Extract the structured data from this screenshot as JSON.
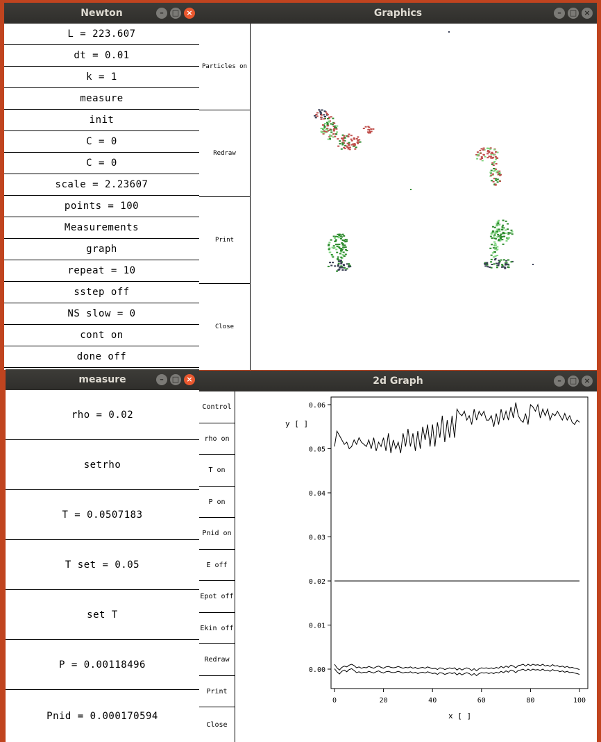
{
  "newton": {
    "title": "Newton",
    "buttons": [
      "L = 223.607",
      "dt = 0.01",
      "k = 1",
      "measure",
      "init",
      "C = 0",
      "C = 0",
      "scale = 2.23607",
      "points = 100",
      "Measurements",
      "graph",
      "repeat = 10",
      "sstep off",
      "NS slow = 0",
      "cont on",
      "done off"
    ]
  },
  "graphics": {
    "title": "Graphics",
    "buttons": [
      "Particles on",
      "Redraw",
      "Print",
      "Close"
    ]
  },
  "measure": {
    "title": "measure",
    "buttons": [
      "rho = 0.02",
      "setrho",
      "T = 0.0507183",
      "T set = 0.05",
      "set T",
      "P = 0.00118496",
      "Pnid = 0.000170594"
    ]
  },
  "graph2d": {
    "title": "2d Graph",
    "buttons": [
      "Control",
      "rho on",
      "T on",
      "P on",
      "Pnid on",
      "E off",
      "Epot off",
      "Ekin off",
      "Redraw",
      "Print",
      "Close"
    ]
  },
  "window_controls": {
    "minimize": "–",
    "maximize": "□",
    "close": "×"
  },
  "colors": {
    "desktop": "#c0441f",
    "titlebar": "#302f2c",
    "close": "#e9582f",
    "plot_line": "#000000",
    "particles": [
      "#2e8b2e",
      "#c0504d",
      "#3a3f55",
      "#7fd67f"
    ]
  },
  "chart_data": {
    "type": "line",
    "xlabel": "x [ ]",
    "ylabel": "y [ ]",
    "xlim": [
      0,
      100
    ],
    "ylim": [
      -0.002,
      0.062
    ],
    "xticks": [
      "0",
      "20",
      "40",
      "60",
      "80",
      "100"
    ],
    "yticks": [
      "0.00",
      "0.01",
      "0.02",
      "0.03",
      "0.04",
      "0.05",
      "0.06"
    ],
    "series": [
      {
        "values": [
          0.0505,
          0.054,
          0.053,
          0.052,
          0.051,
          0.0515,
          0.05,
          0.0505,
          0.052,
          0.051,
          0.0525,
          0.0515,
          0.051,
          0.0505,
          0.052,
          0.05,
          0.0525,
          0.0495,
          0.0515,
          0.0505,
          0.0525,
          0.0495,
          0.0535,
          0.049,
          0.052,
          0.05,
          0.0515,
          0.049,
          0.0535,
          0.0505,
          0.0545,
          0.0505,
          0.0535,
          0.0495,
          0.054,
          0.05,
          0.055,
          0.052,
          0.0555,
          0.0505,
          0.0555,
          0.0505,
          0.056,
          0.0525,
          0.0575,
          0.0515,
          0.0565,
          0.0525,
          0.0575,
          0.0525,
          0.059,
          0.058,
          0.0575,
          0.0585,
          0.0565,
          0.0575,
          0.0555,
          0.059,
          0.0565,
          0.0585,
          0.0575,
          0.0585,
          0.0565,
          0.0565,
          0.0575,
          0.055,
          0.058,
          0.0555,
          0.059,
          0.0565,
          0.0585,
          0.0565,
          0.0595,
          0.057,
          0.0605,
          0.0575,
          0.0565,
          0.056,
          0.058,
          0.0555,
          0.06,
          0.0595,
          0.0585,
          0.06,
          0.057,
          0.059,
          0.0575,
          0.059,
          0.0565,
          0.058,
          0.0575,
          0.0585,
          0.0575,
          0.0565,
          0.058,
          0.0565,
          0.0575,
          0.056,
          0.0555,
          0.0565,
          0.056
        ]
      },
      {
        "values": [
          0.02,
          0.02,
          0.02,
          0.02,
          0.02,
          0.02,
          0.02,
          0.02,
          0.02,
          0.02,
          0.02,
          0.02,
          0.02,
          0.02,
          0.02,
          0.02,
          0.02,
          0.02,
          0.02,
          0.02,
          0.02,
          0.02,
          0.02,
          0.02,
          0.02,
          0.02,
          0.02,
          0.02,
          0.02,
          0.02,
          0.02,
          0.02,
          0.02,
          0.02,
          0.02,
          0.02,
          0.02,
          0.02,
          0.02,
          0.02,
          0.02,
          0.02,
          0.02,
          0.02,
          0.02,
          0.02,
          0.02,
          0.02,
          0.02,
          0.02,
          0.02,
          0.02,
          0.02,
          0.02,
          0.02,
          0.02,
          0.02,
          0.02,
          0.02,
          0.02,
          0.02,
          0.02,
          0.02,
          0.02,
          0.02,
          0.02,
          0.02,
          0.02,
          0.02,
          0.02,
          0.02,
          0.02,
          0.02,
          0.02,
          0.02,
          0.02,
          0.02,
          0.02,
          0.02,
          0.02,
          0.02,
          0.02,
          0.02,
          0.02,
          0.02,
          0.02,
          0.02,
          0.02,
          0.02,
          0.02,
          0.02,
          0.02,
          0.02,
          0.02,
          0.02,
          0.02,
          0.02,
          0.02,
          0.02,
          0.02,
          0.02
        ]
      },
      {
        "values": [
          0.0011,
          0.0003,
          -0.0002,
          0.0004,
          0.0007,
          0.0005,
          0.0009,
          0.0011,
          0.0008,
          0.0003,
          0.0005,
          0.0002,
          0.0004,
          0.0003,
          0.0006,
          0.0004,
          0.0002,
          0.0005,
          0.0007,
          0.0004,
          0.0002,
          0.0005,
          0.0006,
          0.0004,
          0.0003,
          0.0004,
          0.0006,
          0.0004,
          0.0002,
          0.0004,
          0.0003,
          0.0005,
          0.0002,
          0.0004,
          0.0001,
          0.0003,
          0.0004,
          0.0002,
          0.0005,
          0.0003,
          0.0001,
          0.0002,
          -0.0001,
          0.0003,
          0.0002,
          -0.0001,
          0.0001,
          0.0003,
          0.0001,
          0.0003,
          -0.0002,
          0.0002,
          -0.0002,
          0.0001,
          0.0003,
          0.0001,
          -0.0003,
          0.0001,
          -0.0004,
          0.0001,
          0.0003,
          0.0002,
          0.0003,
          0.0001,
          0.0003,
          0.0001,
          0.0004,
          0.0002,
          0.0006,
          0.0003,
          0.0007,
          0.0004,
          0.0009,
          0.0007,
          0.0003,
          0.0008,
          0.0009,
          0.0011,
          0.0007,
          0.0011,
          0.0008,
          0.0011,
          0.0009,
          0.001,
          0.0008,
          0.0011,
          0.0007,
          0.0009,
          0.0006,
          0.001,
          0.0007,
          0.0008,
          0.0005,
          0.0007,
          0.0004,
          0.0006,
          0.0003,
          0.0004,
          0.0002,
          0.0001,
          -0.0001
        ]
      },
      {
        "values": [
          0.0001,
          -0.0006,
          -0.0011,
          -0.0005,
          -0.0002,
          -0.0006,
          -0.0001,
          0.0001,
          -0.0003,
          -0.0008,
          -0.0006,
          -0.0009,
          -0.0007,
          -0.0008,
          -0.0005,
          -0.0007,
          -0.0009,
          -0.0006,
          -0.0004,
          -0.0007,
          -0.0009,
          -0.0006,
          -0.0005,
          -0.0007,
          -0.0008,
          -0.0007,
          -0.0005,
          -0.0007,
          -0.0009,
          -0.0007,
          -0.0008,
          -0.0006,
          -0.0009,
          -0.0007,
          -0.001,
          -0.0008,
          -0.0007,
          -0.0009,
          -0.0006,
          -0.0008,
          -0.001,
          -0.0009,
          -0.0012,
          -0.0008,
          -0.0009,
          -0.0012,
          -0.001,
          -0.0008,
          -0.001,
          -0.0008,
          -0.0013,
          -0.0009,
          -0.0013,
          -0.001,
          -0.0008,
          -0.001,
          -0.0014,
          -0.001,
          -0.0015,
          -0.001,
          -0.0008,
          -0.0009,
          -0.0008,
          -0.001,
          -0.0008,
          -0.001,
          -0.0007,
          -0.0009,
          -0.0005,
          -0.0008,
          -0.0004,
          -0.0007,
          -0.0002,
          -0.0004,
          -0.0008,
          -0.0003,
          -0.0002,
          0.0,
          -0.0004,
          0.0,
          -0.0003,
          0.0,
          -0.0002,
          -0.0001,
          -0.0003,
          0.0,
          -0.0004,
          -0.0002,
          -0.0005,
          -0.0001,
          -0.0004,
          -0.0003,
          -0.0006,
          -0.0004,
          -0.0007,
          -0.0005,
          -0.0008,
          -0.0007,
          -0.0009,
          -0.001,
          -0.0012
        ]
      }
    ]
  }
}
